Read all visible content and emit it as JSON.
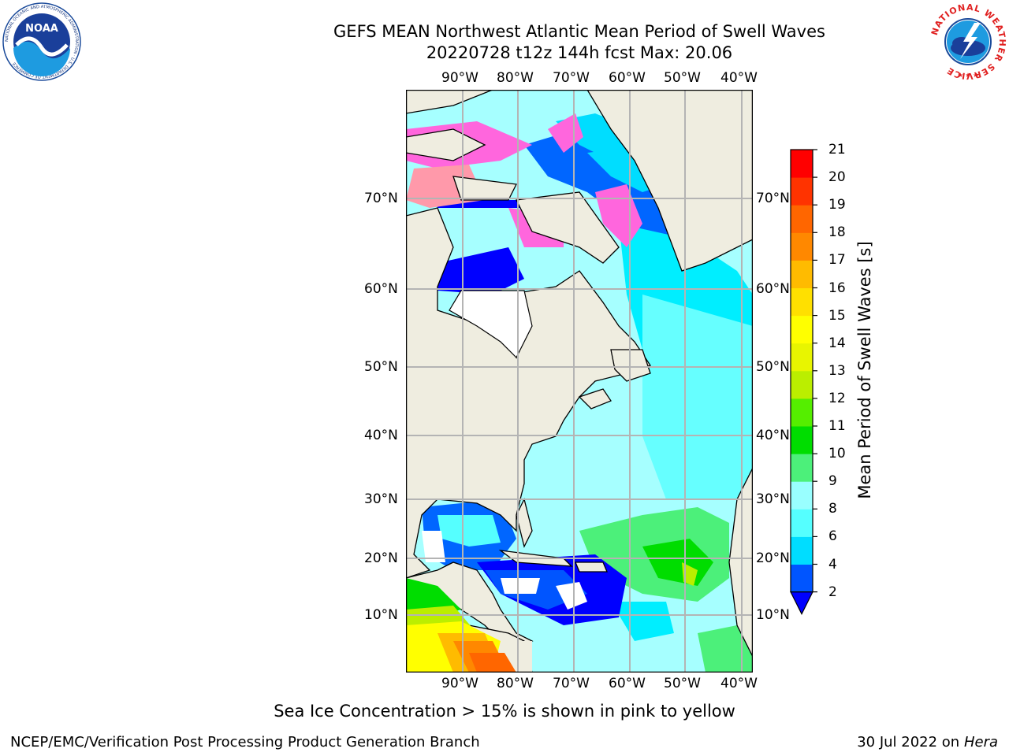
{
  "title": {
    "line1": "GEFS MEAN Northwest Atlantic Mean Period of Swell Waves",
    "line2": "20220728 t12z 144h fcst   Max: 20.06"
  },
  "map": {
    "lon_labels": [
      "90°W",
      "80°W",
      "70°W",
      "60°W",
      "50°W",
      "40°W"
    ],
    "lat_labels": [
      "70°N",
      "60°N",
      "50°N",
      "40°N",
      "30°N",
      "20°N",
      "10°N"
    ],
    "land_color": "#efede0",
    "grid_color": "#b4b4b4"
  },
  "colorbar": {
    "label": "Mean Period of Swell Waves [s]",
    "ticks": [
      "2",
      "4",
      "6",
      "8",
      "9",
      "10",
      "11",
      "12",
      "13",
      "14",
      "15",
      "16",
      "17",
      "18",
      "19",
      "20",
      "21"
    ],
    "colors": [
      "#0055ff",
      "#00ddff",
      "#55ffff",
      "#99ffff",
      "#4cf07a",
      "#00dd00",
      "#55ee00",
      "#bbee00",
      "#e8f500",
      "#ffff00",
      "#ffe000",
      "#ffbb00",
      "#ff8800",
      "#ff6600",
      "#ff3300",
      "#ff0000"
    ],
    "extend_color": "#0000ff"
  },
  "caption": "Sea Ice Concentration > 15% is shown in pink to yellow",
  "footer": {
    "left": "NCEP/EMC/Verification Post Processing Product Generation Branch",
    "date": "30 Jul 2022 on ",
    "machine": "Hera"
  },
  "logos": {
    "noaa_text": "NOAA",
    "noaa_ring": "NATIONAL OCEANIC AND ATMOSPHERIC ADMINISTRATION · U.S. DEPARTMENT OF COMMERCE",
    "nws_ring": "NATIONAL WEATHER SERVICE"
  }
}
